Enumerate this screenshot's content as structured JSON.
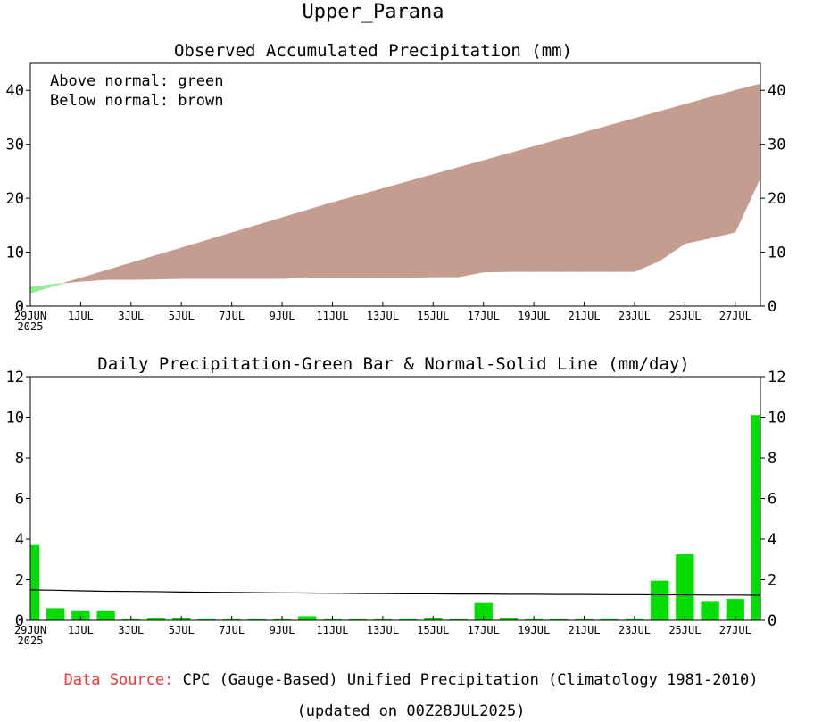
{
  "page": {
    "title": "Upper_Parana",
    "source_label": "Data Source:",
    "source_text": "CPC (Gauge-Based) Unified Precipitation (Climatology 1981-2010)",
    "updated": "(updated on 00Z28JUL2025)"
  },
  "colors": {
    "below": "#c49c90",
    "above": "#90ee90",
    "bar": "#00dd00",
    "line": "#000000",
    "source_label": "#ff3030"
  },
  "chart_data": [
    {
      "type": "area",
      "title": "Observed Accumulated Precipitation (mm)",
      "legend": [
        "Above normal: green",
        "Below normal: brown"
      ],
      "legend_position": "top-left",
      "x_start": "2025-06-29",
      "x": [
        "29JUN",
        "30JUN",
        "1JUL",
        "2JUL",
        "3JUL",
        "4JUL",
        "5JUL",
        "6JUL",
        "7JUL",
        "8JUL",
        "9JUL",
        "10JUL",
        "11JUL",
        "12JUL",
        "13JUL",
        "14JUL",
        "15JUL",
        "16JUL",
        "17JUL",
        "18JUL",
        "19JUL",
        "20JUL",
        "21JUL",
        "22JUL",
        "23JUL",
        "24JUL",
        "25JUL",
        "26JUL",
        "27JUL",
        "28JUL"
      ],
      "x_ticks": [
        "29JUN",
        "1JUL",
        "3JUL",
        "5JUL",
        "7JUL",
        "9JUL",
        "11JUL",
        "13JUL",
        "15JUL",
        "17JUL",
        "19JUL",
        "21JUL",
        "23JUL",
        "25JUL",
        "27JUL"
      ],
      "x_year_label": "2025",
      "ylim": [
        0,
        45
      ],
      "y_ticks": [
        0,
        10,
        20,
        30,
        40
      ],
      "series": [
        {
          "name": "observed",
          "values": [
            3.5,
            4.1,
            4.6,
            4.9,
            4.9,
            5.0,
            5.1,
            5.1,
            5.1,
            5.1,
            5.1,
            5.3,
            5.3,
            5.3,
            5.3,
            5.3,
            5.4,
            5.4,
            6.3,
            6.4,
            6.4,
            6.4,
            6.4,
            6.4,
            6.4,
            8.4,
            11.6,
            12.6,
            13.7,
            23.8
          ]
        },
        {
          "name": "normal",
          "values": [
            2.4,
            3.8,
            5.2,
            6.6,
            8.0,
            9.4,
            10.8,
            12.2,
            13.6,
            15.0,
            16.4,
            17.8,
            19.2,
            20.5,
            21.8,
            23.1,
            24.4,
            25.7,
            27.0,
            28.3,
            29.6,
            30.9,
            32.2,
            33.5,
            34.8,
            36.1,
            37.4,
            38.7,
            40.0,
            41.2
          ]
        }
      ],
      "grid": false
    },
    {
      "type": "bar",
      "title": "Daily Precipitation-Green Bar & Normal-Solid Line (mm/day)",
      "x": [
        "29JUN",
        "30JUN",
        "1JUL",
        "2JUL",
        "3JUL",
        "4JUL",
        "5JUL",
        "6JUL",
        "7JUL",
        "8JUL",
        "9JUL",
        "10JUL",
        "11JUL",
        "12JUL",
        "13JUL",
        "14JUL",
        "15JUL",
        "16JUL",
        "17JUL",
        "18JUL",
        "19JUL",
        "20JUL",
        "21JUL",
        "22JUL",
        "23JUL",
        "24JUL",
        "25JUL",
        "26JUL",
        "27JUL",
        "28JUL"
      ],
      "x_ticks": [
        "29JUN",
        "1JUL",
        "3JUL",
        "5JUL",
        "7JUL",
        "9JUL",
        "11JUL",
        "13JUL",
        "15JUL",
        "17JUL",
        "19JUL",
        "21JUL",
        "23JUL",
        "25JUL",
        "27JUL"
      ],
      "x_year_label": "2025",
      "ylim": [
        0,
        12
      ],
      "y_ticks": [
        0,
        2,
        4,
        6,
        8,
        10,
        12
      ],
      "series": [
        {
          "name": "daily",
          "values": [
            3.7,
            0.6,
            0.45,
            0.45,
            0.05,
            0.1,
            0.1,
            0.05,
            0.05,
            0.05,
            0.05,
            0.2,
            0.05,
            0.05,
            0.05,
            0.05,
            0.1,
            0.05,
            0.85,
            0.1,
            0.05,
            0.05,
            0.05,
            0.05,
            0.05,
            1.95,
            3.25,
            0.95,
            1.05,
            10.1
          ]
        },
        {
          "name": "normal",
          "values": [
            1.5,
            1.48,
            1.45,
            1.43,
            1.42,
            1.41,
            1.39,
            1.38,
            1.37,
            1.36,
            1.35,
            1.34,
            1.33,
            1.32,
            1.31,
            1.3,
            1.3,
            1.29,
            1.29,
            1.28,
            1.28,
            1.27,
            1.27,
            1.26,
            1.26,
            1.25,
            1.25,
            1.24,
            1.24,
            1.23
          ]
        }
      ],
      "grid": false
    }
  ]
}
